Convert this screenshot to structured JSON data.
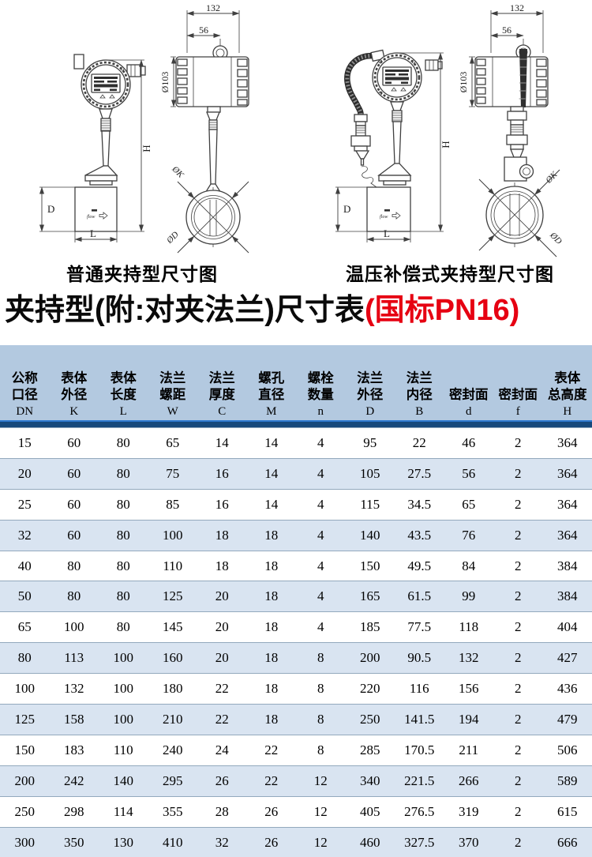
{
  "drawings": {
    "caption_left": "普通夹持型尺寸图",
    "caption_right": "温压补偿式夹持型尺寸图",
    "flow_label": "flow",
    "dims": {
      "w132": "132",
      "w56": "56",
      "d103": "Ø103",
      "H": "H",
      "D": "D",
      "L": "L",
      "K": "ØK",
      "OD": "ØD"
    }
  },
  "title": {
    "black": "夹持型(附:对夹法兰)尺寸表",
    "red": "(国标PN16)"
  },
  "table": {
    "colors": {
      "header_bg": "#b3c9e0",
      "stripe_bg": "#d9e4f1",
      "divider_dark": "#17497c",
      "divider_bright": "#2e79cf",
      "row_line": "#93a9bd",
      "accent_red": "#e60012"
    },
    "headers": [
      {
        "cn1": "公称",
        "cn2": "口径",
        "sym": "DN"
      },
      {
        "cn1": "表体",
        "cn2": "外径",
        "sym": "K"
      },
      {
        "cn1": "表体",
        "cn2": "长度",
        "sym": "L"
      },
      {
        "cn1": "法兰",
        "cn2": "螺距",
        "sym": "W"
      },
      {
        "cn1": "法兰",
        "cn2": "厚度",
        "sym": "C"
      },
      {
        "cn1": "螺孔",
        "cn2": "直径",
        "sym": "M"
      },
      {
        "cn1": "螺栓",
        "cn2": "数量",
        "sym": "n"
      },
      {
        "cn1": "法兰",
        "cn2": "外径",
        "sym": "D"
      },
      {
        "cn1": "法兰",
        "cn2": "内径",
        "sym": "B"
      },
      {
        "cn1": "",
        "cn2": "密封面",
        "sym": "d"
      },
      {
        "cn1": "",
        "cn2": "密封面",
        "sym": "f"
      },
      {
        "cn1": "表体",
        "cn2": "总高度",
        "sym": "H"
      }
    ],
    "rows": [
      [
        "15",
        "60",
        "80",
        "65",
        "14",
        "14",
        "4",
        "95",
        "22",
        "46",
        "2",
        "364"
      ],
      [
        "20",
        "60",
        "80",
        "75",
        "16",
        "14",
        "4",
        "105",
        "27.5",
        "56",
        "2",
        "364"
      ],
      [
        "25",
        "60",
        "80",
        "85",
        "16",
        "14",
        "4",
        "115",
        "34.5",
        "65",
        "2",
        "364"
      ],
      [
        "32",
        "60",
        "80",
        "100",
        "18",
        "18",
        "4",
        "140",
        "43.5",
        "76",
        "2",
        "364"
      ],
      [
        "40",
        "80",
        "80",
        "110",
        "18",
        "18",
        "4",
        "150",
        "49.5",
        "84",
        "2",
        "384"
      ],
      [
        "50",
        "80",
        "80",
        "125",
        "20",
        "18",
        "4",
        "165",
        "61.5",
        "99",
        "2",
        "384"
      ],
      [
        "65",
        "100",
        "80",
        "145",
        "20",
        "18",
        "4",
        "185",
        "77.5",
        "118",
        "2",
        "404"
      ],
      [
        "80",
        "113",
        "100",
        "160",
        "20",
        "18",
        "8",
        "200",
        "90.5",
        "132",
        "2",
        "427"
      ],
      [
        "100",
        "132",
        "100",
        "180",
        "22",
        "18",
        "8",
        "220",
        "116",
        "156",
        "2",
        "436"
      ],
      [
        "125",
        "158",
        "100",
        "210",
        "22",
        "18",
        "8",
        "250",
        "141.5",
        "194",
        "2",
        "479"
      ],
      [
        "150",
        "183",
        "110",
        "240",
        "24",
        "22",
        "8",
        "285",
        "170.5",
        "211",
        "2",
        "506"
      ],
      [
        "200",
        "242",
        "140",
        "295",
        "26",
        "22",
        "12",
        "340",
        "221.5",
        "266",
        "2",
        "589"
      ],
      [
        "250",
        "298",
        "114",
        "355",
        "28",
        "26",
        "12",
        "405",
        "276.5",
        "319",
        "2",
        "615"
      ],
      [
        "300",
        "350",
        "130",
        "410",
        "32",
        "26",
        "12",
        "460",
        "327.5",
        "370",
        "2",
        "666"
      ]
    ]
  }
}
